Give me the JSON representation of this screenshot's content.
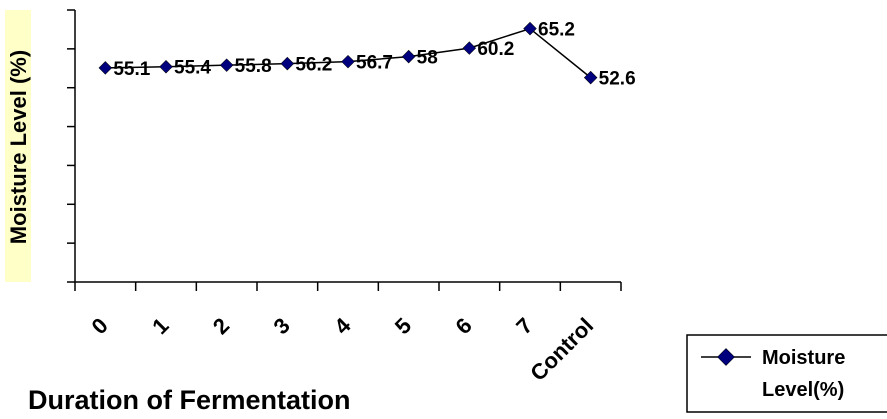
{
  "chart_data": {
    "type": "line",
    "categories": [
      "0",
      "1",
      "2",
      "3",
      "4",
      "5",
      "6",
      "7",
      "Control"
    ],
    "series": [
      {
        "name": "Moisture Level(%)",
        "values": [
          55.1,
          55.4,
          55.8,
          56.2,
          56.7,
          58,
          60.2,
          65.2,
          52.6
        ],
        "labels": [
          "55.1",
          "55.4",
          "55.8",
          "56.2",
          "56.7",
          "58",
          "60.2",
          "65.2",
          "52.6"
        ],
        "color": "#00007f"
      }
    ],
    "xlabel": "Duration of Fermentation",
    "ylabel": "Moisture Level (%)",
    "ylim": [
      0,
      70
    ],
    "ytick_step": 10,
    "grid": false,
    "legend": {
      "placement": "bottom-right",
      "label": "Moisture Level(%)"
    },
    "colors": {
      "ylabel_background": "#ffffc8",
      "axis": "#000000",
      "marker": "#00007f"
    }
  }
}
